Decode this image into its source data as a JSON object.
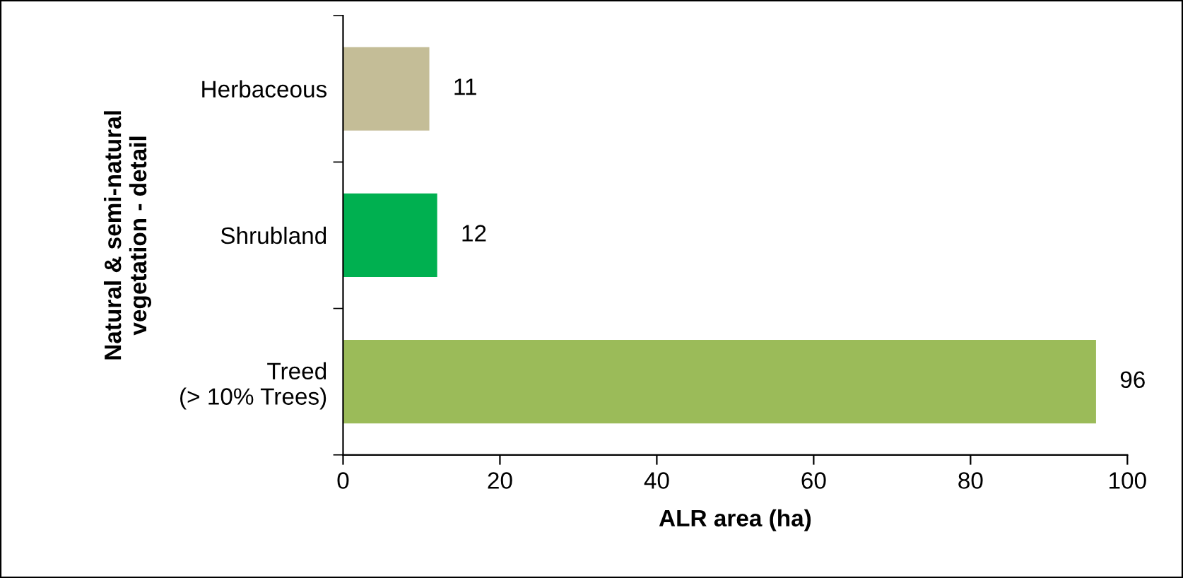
{
  "chart_data": {
    "type": "bar",
    "orientation": "horizontal",
    "categories": [
      "Herbaceous",
      "Shrubland",
      "Treed\n(> 10% Trees)"
    ],
    "values": [
      11,
      12,
      96
    ],
    "colors": [
      "#c4bd97",
      "#00b050",
      "#9bbb59"
    ],
    "xlim": [
      0,
      100
    ],
    "xticks": [
      0,
      20,
      40,
      60,
      80,
      100
    ],
    "xlabel": "ALR area (ha)",
    "ylabel": "Natural & semi-natural\nvegetation - detail",
    "data_labels": true,
    "grid": false,
    "legend": false
  }
}
